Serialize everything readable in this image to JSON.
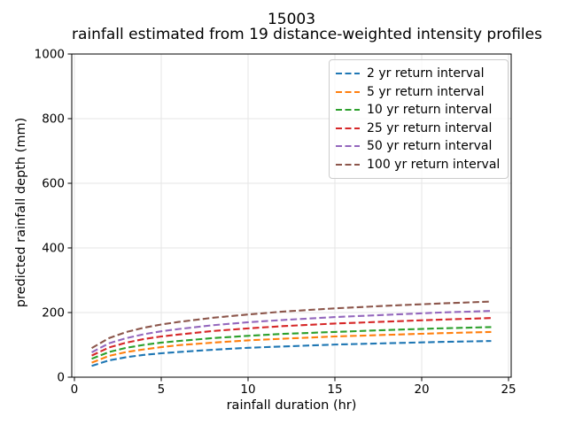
{
  "title": "15003",
  "subtitle": "rainfall estimated from 19 distance-weighted intensity profiles",
  "axes": {
    "x_label": "rainfall duration (hr)",
    "y_label": "predicted rainfall depth (mm)"
  },
  "legend": {
    "position": "upper-right"
  },
  "colors": {
    "background": "#ffffff",
    "spine": "#000000",
    "grid": "#e6e6e6",
    "tick_text": "#000000",
    "legend_border": "#cccccc"
  },
  "chart_data": {
    "type": "line",
    "title": "15003",
    "subtitle": "rainfall estimated from 19 distance-weighted intensity profiles",
    "xlabel": "rainfall duration (hr)",
    "ylabel": "predicted rainfall depth (mm)",
    "xlim": [
      -0.15,
      25.15
    ],
    "ylim": [
      0,
      1000
    ],
    "x_ticks": [
      0,
      5,
      10,
      15,
      20,
      25
    ],
    "y_ticks": [
      0,
      200,
      400,
      600,
      800,
      1000
    ],
    "grid": true,
    "line_style": "dashed",
    "legend_position": "upper right",
    "x": [
      1,
      2,
      3,
      4,
      5,
      6,
      8,
      10,
      12,
      15,
      18,
      21,
      24
    ],
    "series": [
      {
        "name": "2 yr return interval",
        "color": "#1f77b4",
        "values": [
          35,
          52,
          62,
          69,
          74,
          78,
          85,
          91,
          95,
          101,
          105,
          109,
          112
        ]
      },
      {
        "name": "5 yr return interval",
        "color": "#ff7f0e",
        "values": [
          45,
          66,
          78,
          86,
          93,
          99,
          107,
          114,
          119,
          126,
          131,
          136,
          140
        ]
      },
      {
        "name": "10 yr return interval",
        "color": "#2ca02c",
        "values": [
          57,
          78,
          91,
          100,
          107,
          112,
          121,
          128,
          134,
          140,
          146,
          151,
          155
        ]
      },
      {
        "name": "25 yr return interval",
        "color": "#d62728",
        "values": [
          67,
          92,
          107,
          118,
          126,
          132,
          143,
          151,
          158,
          166,
          172,
          178,
          183
        ]
      },
      {
        "name": "50 yr return interval",
        "color": "#9467bd",
        "values": [
          77,
          105,
          121,
          133,
          142,
          149,
          161,
          170,
          177,
          186,
          193,
          200,
          205
        ]
      },
      {
        "name": "100 yr return interval",
        "color": "#8c564b",
        "values": [
          90,
          121,
          140,
          153,
          163,
          171,
          184,
          194,
          203,
          213,
          221,
          228,
          234
        ]
      }
    ]
  }
}
